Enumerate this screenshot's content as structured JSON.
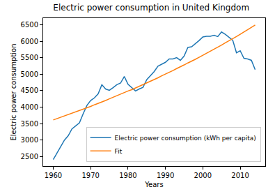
{
  "chart_data": {
    "type": "line",
    "title": "Electric power consumption in United Kingdom",
    "x_label": "Years",
    "y_label": "Electric power consumption",
    "x": [
      1960,
      1961,
      1962,
      1963,
      1964,
      1965,
      1966,
      1967,
      1968,
      1969,
      1970,
      1971,
      1972,
      1973,
      1974,
      1975,
      1976,
      1977,
      1978,
      1979,
      1980,
      1981,
      1982,
      1983,
      1984,
      1985,
      1986,
      1987,
      1988,
      1989,
      1990,
      1991,
      1992,
      1993,
      1994,
      1995,
      1996,
      1997,
      1998,
      1999,
      2000,
      2001,
      2002,
      2003,
      2004,
      2005,
      2006,
      2007,
      2008,
      2009,
      2010,
      2011,
      2012,
      2013,
      2014
    ],
    "series": [
      {
        "name": "Electric power consumption (kWh per capita)",
        "color": "#1f77b4",
        "values": [
          2410,
          2600,
          2800,
          3000,
          3130,
          3340,
          3430,
          3520,
          3800,
          4050,
          4200,
          4280,
          4400,
          4680,
          4550,
          4510,
          4590,
          4680,
          4730,
          4930,
          4690,
          4600,
          4490,
          4550,
          4600,
          4830,
          4960,
          5080,
          5240,
          5300,
          5360,
          5460,
          5460,
          5500,
          5420,
          5550,
          5810,
          5830,
          5920,
          6020,
          6130,
          6150,
          6150,
          6180,
          6140,
          6280,
          6210,
          6120,
          6030,
          5650,
          5710,
          5480,
          5460,
          5420,
          5140
        ]
      },
      {
        "name": "Fit",
        "color": "#ff7f0e",
        "values": [
          3610,
          3650,
          3690,
          3730,
          3770,
          3810,
          3850,
          3900,
          3940,
          3980,
          4020,
          4070,
          4110,
          4160,
          4200,
          4250,
          4300,
          4340,
          4390,
          4440,
          4490,
          4530,
          4580,
          4630,
          4680,
          4740,
          4790,
          4840,
          4890,
          4950,
          5000,
          5050,
          5110,
          5170,
          5220,
          5280,
          5340,
          5390,
          5450,
          5510,
          5570,
          5630,
          5700,
          5760,
          5820,
          5880,
          5950,
          6010,
          6080,
          6140,
          6210,
          6280,
          6350,
          6420,
          6490
        ]
      }
    ],
    "xlim": [
      1957.3,
      2016.7
    ],
    "ylim": [
      2210,
      6700
    ],
    "xticks": [
      1960,
      1970,
      1980,
      1990,
      2000,
      2010
    ],
    "yticks": [
      2500,
      3000,
      3500,
      4000,
      4500,
      5000,
      5500,
      6000,
      6500
    ],
    "grid": false,
    "legend": "lower right"
  }
}
